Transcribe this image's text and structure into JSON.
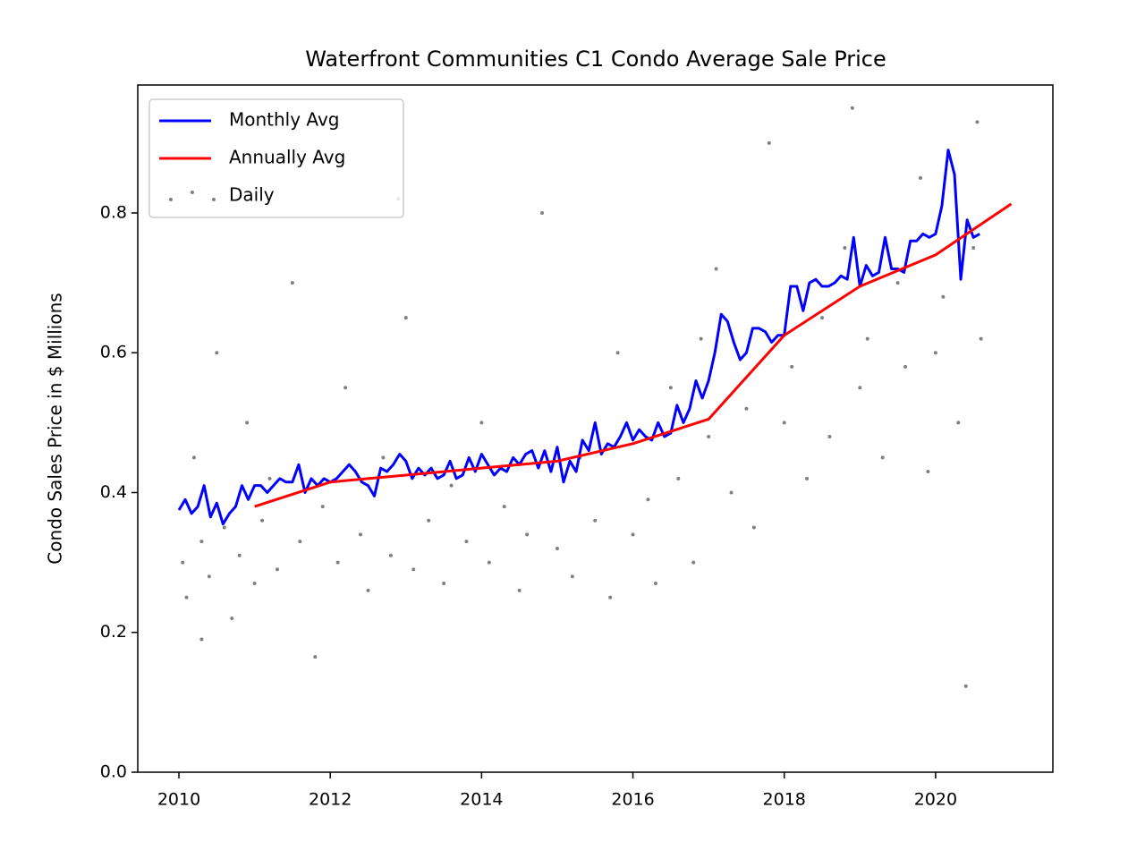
{
  "chart_data": {
    "type": "line",
    "title": "Waterfront Communities C1 Condo Average Sale Price",
    "ylabel": "Condo Sales Price in $ Millions",
    "xlim": [
      2009.456,
      2021.55
    ],
    "ylim": [
      0,
      0.983
    ],
    "xticks": [
      2010,
      2012,
      2014,
      2016,
      2018,
      2020
    ],
    "yticks": [
      {
        "value": 0,
        "label": "0.0"
      },
      0.2,
      0.4,
      0.6,
      0.8
    ],
    "legend": "upper left",
    "series": [
      {
        "name": "Daily",
        "type": "scatter",
        "color": "#808080",
        "x": [
          2010.05,
          2010.1,
          2010.2,
          2010.3,
          2010.4,
          2010.5,
          2010.6,
          2010.7,
          2010.8,
          2010.9,
          2011.0,
          2011.1,
          2011.2,
          2011.3,
          2011.5,
          2011.6,
          2011.8,
          2011.9,
          2012.1,
          2012.2,
          2012.4,
          2012.5,
          2012.7,
          2012.8,
          2013.0,
          2013.1,
          2013.3,
          2013.5,
          2013.6,
          2013.8,
          2014.0,
          2014.1,
          2014.3,
          2014.5,
          2014.6,
          2014.8,
          2015.0,
          2015.2,
          2015.3,
          2015.5,
          2015.7,
          2015.8,
          2016.0,
          2016.2,
          2016.3,
          2016.5,
          2016.6,
          2016.8,
          2017.0,
          2017.1,
          2017.3,
          2017.5,
          2017.6,
          2017.8,
          2018.0,
          2018.1,
          2018.3,
          2018.5,
          2018.6,
          2018.8,
          2019.0,
          2019.1,
          2019.3,
          2019.5,
          2019.6,
          2019.8,
          2020.0,
          2020.1,
          2020.3,
          2020.4,
          2020.5,
          2020.6,
          2010.3,
          2012.9,
          2016.9,
          2018.9,
          2019.9,
          2020.55
        ],
        "values": [
          0.3,
          0.25,
          0.45,
          0.33,
          0.28,
          0.6,
          0.35,
          0.22,
          0.31,
          0.5,
          0.27,
          0.36,
          0.42,
          0.29,
          0.7,
          0.33,
          0.165,
          0.38,
          0.3,
          0.55,
          0.34,
          0.26,
          0.45,
          0.31,
          0.65,
          0.29,
          0.36,
          0.27,
          0.41,
          0.33,
          0.5,
          0.3,
          0.38,
          0.26,
          0.34,
          0.8,
          0.32,
          0.28,
          0.45,
          0.36,
          0.25,
          0.6,
          0.34,
          0.39,
          0.27,
          0.55,
          0.42,
          0.3,
          0.48,
          0.72,
          0.4,
          0.52,
          0.35,
          0.9,
          0.5,
          0.58,
          0.42,
          0.65,
          0.48,
          0.75,
          0.55,
          0.62,
          0.45,
          0.7,
          0.58,
          0.85,
          0.6,
          0.68,
          0.5,
          0.123,
          0.75,
          0.62,
          0.19,
          0.82,
          0.62,
          0.95,
          0.43,
          0.93
        ]
      },
      {
        "name": "Monthly Avg",
        "type": "line",
        "color": "#0000ff",
        "x": [
          2010.0,
          2010.083,
          2010.167,
          2010.25,
          2010.333,
          2010.417,
          2010.5,
          2010.583,
          2010.667,
          2010.75,
          2010.833,
          2010.917,
          2011.0,
          2011.083,
          2011.167,
          2011.25,
          2011.333,
          2011.417,
          2011.5,
          2011.583,
          2011.667,
          2011.75,
          2011.833,
          2011.917,
          2012.0,
          2012.083,
          2012.167,
          2012.25,
          2012.333,
          2012.417,
          2012.5,
          2012.583,
          2012.667,
          2012.75,
          2012.833,
          2012.917,
          2013.0,
          2013.083,
          2013.167,
          2013.25,
          2013.333,
          2013.417,
          2013.5,
          2013.583,
          2013.667,
          2013.75,
          2013.833,
          2013.917,
          2014.0,
          2014.083,
          2014.167,
          2014.25,
          2014.333,
          2014.417,
          2014.5,
          2014.583,
          2014.667,
          2014.75,
          2014.833,
          2014.917,
          2015.0,
          2015.083,
          2015.167,
          2015.25,
          2015.333,
          2015.417,
          2015.5,
          2015.583,
          2015.667,
          2015.75,
          2015.833,
          2015.917,
          2016.0,
          2016.083,
          2016.167,
          2016.25,
          2016.333,
          2016.417,
          2016.5,
          2016.583,
          2016.667,
          2016.75,
          2016.833,
          2016.917,
          2017.0,
          2017.083,
          2017.167,
          2017.25,
          2017.333,
          2017.417,
          2017.5,
          2017.583,
          2017.667,
          2017.75,
          2017.833,
          2017.917,
          2018.0,
          2018.083,
          2018.167,
          2018.25,
          2018.333,
          2018.417,
          2018.5,
          2018.583,
          2018.667,
          2018.75,
          2018.833,
          2018.917,
          2019.0,
          2019.083,
          2019.167,
          2019.25,
          2019.333,
          2019.417,
          2019.5,
          2019.583,
          2019.667,
          2019.75,
          2019.833,
          2019.917,
          2020.0,
          2020.083,
          2020.167,
          2020.25,
          2020.333,
          2020.417,
          2020.5,
          2020.583
        ],
        "values": [
          0.375,
          0.39,
          0.37,
          0.38,
          0.41,
          0.365,
          0.385,
          0.355,
          0.37,
          0.38,
          0.41,
          0.39,
          0.41,
          0.41,
          0.4,
          0.41,
          0.42,
          0.415,
          0.415,
          0.44,
          0.4,
          0.42,
          0.41,
          0.42,
          0.415,
          0.42,
          0.43,
          0.44,
          0.43,
          0.415,
          0.41,
          0.395,
          0.435,
          0.43,
          0.44,
          0.455,
          0.445,
          0.42,
          0.435,
          0.425,
          0.435,
          0.42,
          0.425,
          0.445,
          0.42,
          0.425,
          0.45,
          0.43,
          0.455,
          0.44,
          0.425,
          0.435,
          0.43,
          0.45,
          0.44,
          0.455,
          0.46,
          0.435,
          0.46,
          0.43,
          0.465,
          0.415,
          0.445,
          0.43,
          0.475,
          0.46,
          0.5,
          0.455,
          0.47,
          0.465,
          0.48,
          0.5,
          0.475,
          0.49,
          0.48,
          0.475,
          0.5,
          0.48,
          0.485,
          0.525,
          0.5,
          0.52,
          0.56,
          0.535,
          0.56,
          0.6,
          0.655,
          0.645,
          0.615,
          0.59,
          0.6,
          0.635,
          0.635,
          0.63,
          0.615,
          0.625,
          0.625,
          0.695,
          0.695,
          0.66,
          0.7,
          0.705,
          0.695,
          0.695,
          0.7,
          0.71,
          0.705,
          0.765,
          0.695,
          0.725,
          0.71,
          0.715,
          0.765,
          0.72,
          0.72,
          0.715,
          0.76,
          0.76,
          0.77,
          0.765,
          0.77,
          0.81,
          0.89,
          0.855,
          0.705,
          0.79,
          0.765,
          0.77
        ]
      },
      {
        "name": "Annually Avg",
        "type": "line",
        "color": "#ff0000",
        "x": [
          2011,
          2012,
          2013,
          2014,
          2015,
          2016,
          2017,
          2018,
          2019,
          2020,
          2021
        ],
        "values": [
          0.38,
          0.415,
          0.425,
          0.435,
          0.445,
          0.47,
          0.505,
          0.625,
          0.695,
          0.74,
          0.813
        ]
      }
    ]
  }
}
